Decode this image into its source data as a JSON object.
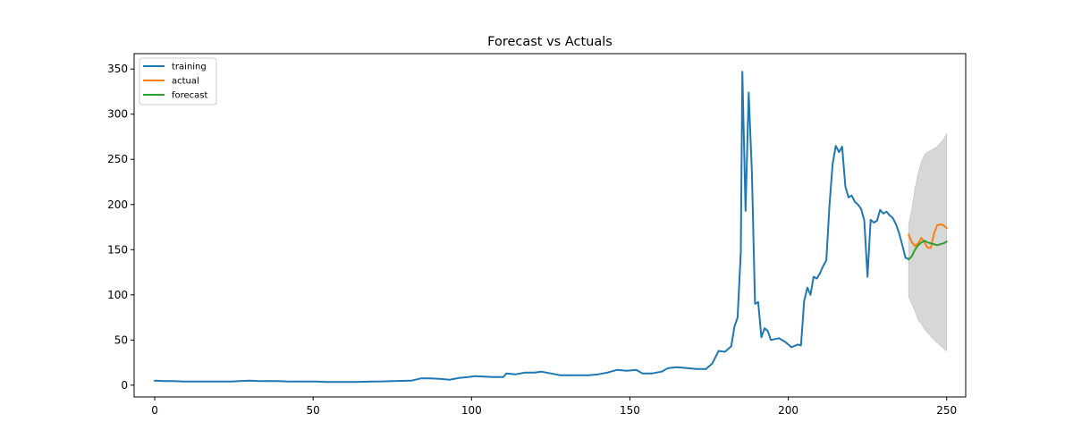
{
  "chart_data": {
    "type": "line",
    "title": "Forecast vs Actuals",
    "xlabel": "",
    "ylabel": "",
    "xlim": [
      -6.5,
      256
    ],
    "ylim": [
      -13,
      367
    ],
    "xticks": [
      0,
      50,
      100,
      150,
      200,
      250
    ],
    "yticks": [
      0,
      50,
      100,
      150,
      200,
      250,
      300,
      350
    ],
    "grid": false,
    "legend_position": "top-left",
    "series": [
      {
        "name": "training",
        "color": "#1f77b4",
        "points": [
          [
            0,
            5
          ],
          [
            3,
            4.5
          ],
          [
            6,
            4.5
          ],
          [
            9,
            4
          ],
          [
            12,
            4
          ],
          [
            15,
            4
          ],
          [
            18,
            4
          ],
          [
            21,
            4
          ],
          [
            24,
            4
          ],
          [
            27,
            4.5
          ],
          [
            30,
            5
          ],
          [
            33,
            4.5
          ],
          [
            36,
            4.5
          ],
          [
            39,
            4.5
          ],
          [
            42,
            4
          ],
          [
            45,
            4
          ],
          [
            48,
            4
          ],
          [
            51,
            4
          ],
          [
            54,
            3.5
          ],
          [
            57,
            3.5
          ],
          [
            60,
            3.5
          ],
          [
            63,
            3.5
          ],
          [
            66,
            3.8
          ],
          [
            69,
            4
          ],
          [
            72,
            4.2
          ],
          [
            75,
            4.5
          ],
          [
            78,
            4.8
          ],
          [
            81,
            5
          ],
          [
            84,
            7.5
          ],
          [
            87,
            7.5
          ],
          [
            90,
            7
          ],
          [
            93,
            6
          ],
          [
            96,
            8
          ],
          [
            99,
            9
          ],
          [
            101,
            10
          ],
          [
            104,
            9.5
          ],
          [
            107,
            9
          ],
          [
            110,
            9
          ],
          [
            111,
            13
          ],
          [
            114,
            12
          ],
          [
            117,
            14
          ],
          [
            120,
            14
          ],
          [
            122,
            15
          ],
          [
            125,
            13
          ],
          [
            128,
            11
          ],
          [
            131,
            11
          ],
          [
            134,
            11
          ],
          [
            137,
            11
          ],
          [
            140,
            12
          ],
          [
            143,
            14
          ],
          [
            146,
            17
          ],
          [
            149,
            16
          ],
          [
            152,
            17
          ],
          [
            154,
            13
          ],
          [
            157,
            13
          ],
          [
            160,
            15
          ],
          [
            162,
            19
          ],
          [
            165,
            20
          ],
          [
            168,
            19
          ],
          [
            171,
            18
          ],
          [
            174,
            18
          ],
          [
            176,
            24
          ],
          [
            178,
            38
          ],
          [
            180,
            37
          ],
          [
            182,
            43
          ],
          [
            183,
            65
          ],
          [
            184,
            75
          ],
          [
            185,
            148
          ],
          [
            185.5,
            347
          ],
          [
            186.5,
            193
          ],
          [
            187.5,
            324
          ],
          [
            188.5,
            235
          ],
          [
            189.5,
            90
          ],
          [
            190.5,
            92
          ],
          [
            191.5,
            53
          ],
          [
            192.5,
            63
          ],
          [
            193.5,
            60
          ],
          [
            194.5,
            50
          ],
          [
            197,
            52
          ],
          [
            199,
            48
          ],
          [
            201,
            42
          ],
          [
            203,
            45
          ],
          [
            204,
            44
          ],
          [
            205,
            93
          ],
          [
            206,
            108
          ],
          [
            207,
            100
          ],
          [
            208,
            120
          ],
          [
            209,
            118
          ],
          [
            210,
            124
          ],
          [
            211,
            132
          ],
          [
            212,
            138
          ],
          [
            213,
            200
          ],
          [
            214,
            245
          ],
          [
            215,
            265
          ],
          [
            216,
            258
          ],
          [
            217,
            264
          ],
          [
            218,
            220
          ],
          [
            219,
            208
          ],
          [
            220,
            210
          ],
          [
            221,
            203
          ],
          [
            222,
            200
          ],
          [
            223,
            195
          ],
          [
            224,
            182
          ],
          [
            225,
            120
          ],
          [
            226,
            183
          ],
          [
            227,
            180
          ],
          [
            228,
            182
          ],
          [
            229,
            194
          ],
          [
            230,
            190
          ],
          [
            231,
            192
          ],
          [
            232,
            188
          ],
          [
            233,
            185
          ],
          [
            234,
            178
          ],
          [
            235,
            168
          ],
          [
            236,
            155
          ],
          [
            237,
            141
          ],
          [
            238,
            140
          ]
        ]
      },
      {
        "name": "actual",
        "color": "#ff7f0e",
        "points": [
          [
            238,
            167
          ],
          [
            239,
            158
          ],
          [
            240,
            154
          ],
          [
            241,
            157
          ],
          [
            242,
            163
          ],
          [
            243,
            158
          ],
          [
            244,
            152
          ],
          [
            245,
            152
          ],
          [
            246,
            168
          ],
          [
            247,
            177
          ],
          [
            248,
            178
          ],
          [
            249,
            177
          ],
          [
            250,
            174
          ]
        ]
      },
      {
        "name": "forecast",
        "color": "#2ca02c",
        "points": [
          [
            238,
            139
          ],
          [
            239,
            143
          ],
          [
            240,
            150
          ],
          [
            241,
            155
          ],
          [
            242,
            158
          ],
          [
            243,
            160
          ],
          [
            244,
            158
          ],
          [
            245,
            157
          ],
          [
            246,
            156
          ],
          [
            247,
            155
          ],
          [
            248,
            156
          ],
          [
            249,
            157
          ],
          [
            250,
            159
          ]
        ]
      }
    ],
    "confidence_band": {
      "color": "#d3d3d3",
      "x": [
        238,
        239,
        240,
        241,
        242,
        243,
        244,
        245,
        246,
        247,
        248,
        249,
        250
      ],
      "upper": [
        178,
        195,
        218,
        235,
        247,
        255,
        258,
        260,
        262,
        264,
        268,
        272,
        278
      ],
      "lower": [
        98,
        90,
        82,
        72,
        68,
        62,
        58,
        54,
        50,
        47,
        44,
        41,
        38
      ]
    }
  }
}
